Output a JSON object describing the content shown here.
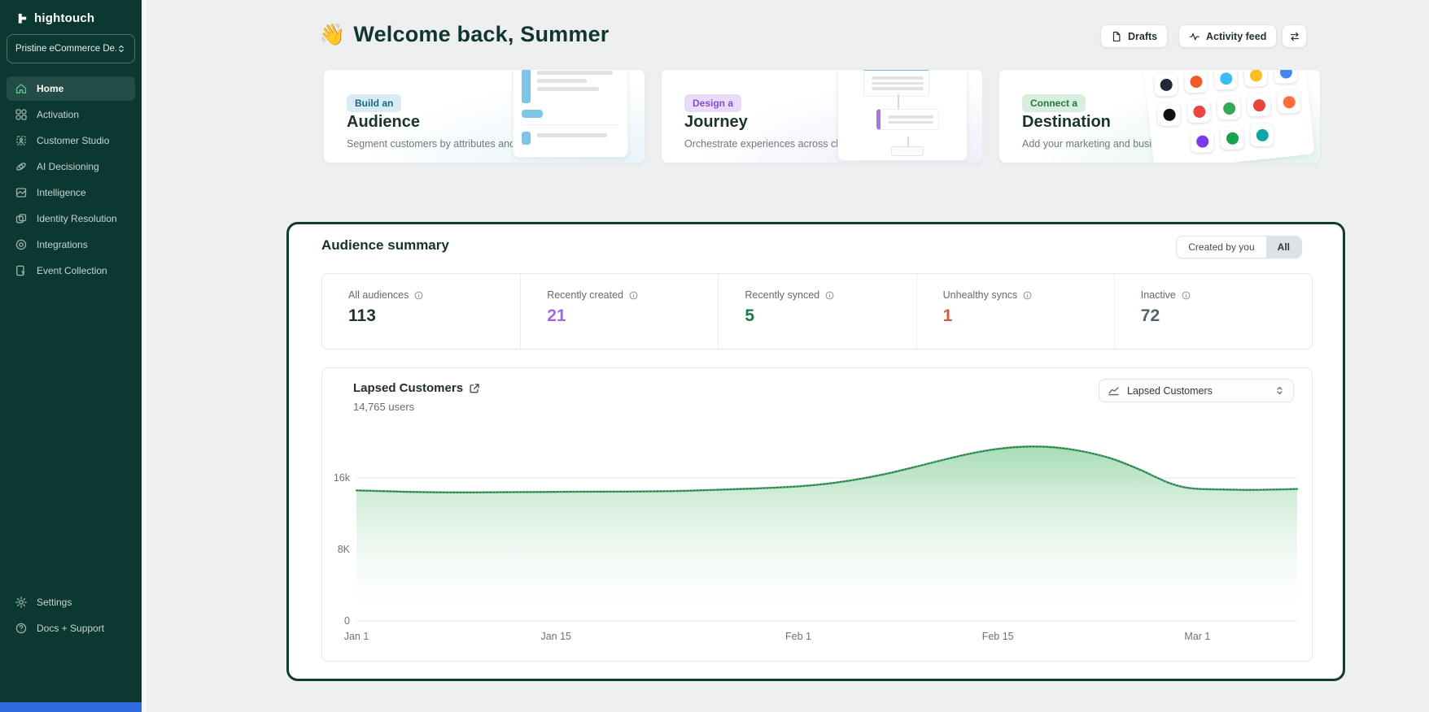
{
  "sidebar": {
    "logo_text": "hightouch",
    "workspace": "Pristine eCommerce De...",
    "nav": [
      {
        "label": "Home",
        "icon": "home-icon",
        "active": true
      },
      {
        "label": "Activation",
        "icon": "activation-icon",
        "active": false
      },
      {
        "label": "Customer Studio",
        "icon": "customer-studio-icon",
        "active": false
      },
      {
        "label": "AI Decisioning",
        "icon": "ai-decisioning-icon",
        "active": false
      },
      {
        "label": "Intelligence",
        "icon": "intelligence-icon",
        "active": false
      },
      {
        "label": "Identity Resolution",
        "icon": "identity-resolution-icon",
        "active": false
      },
      {
        "label": "Integrations",
        "icon": "integrations-icon",
        "active": false
      },
      {
        "label": "Event Collection",
        "icon": "event-collection-icon",
        "active": false
      }
    ],
    "footer": [
      {
        "label": "Settings",
        "icon": "settings-icon"
      },
      {
        "label": "Docs + Support",
        "icon": "help-icon"
      }
    ]
  },
  "header": {
    "emoji": "👋",
    "title": "Welcome back, Summer",
    "drafts_label": "Drafts",
    "activity_feed_label": "Activity feed"
  },
  "quick_cards": [
    {
      "badge": "Build an",
      "title": "Audience",
      "description": "Segment customers by attributes and behavior",
      "badge_bg": "#d9ecf6",
      "badge_color": "#186a77"
    },
    {
      "badge": "Design a",
      "title": "Journey",
      "description": "Orchestrate experiences across channels",
      "badge_bg": "#e9dcf8",
      "badge_color": "#8a4bd0"
    },
    {
      "badge": "Connect a",
      "title": "Destination",
      "description": "Add your marketing and business tools",
      "badge_bg": "#d8efdd",
      "badge_color": "#1e7a45"
    }
  ],
  "destination_tile_colors": [
    "#1f2937",
    "#f25c26",
    "#38bdf8",
    "#fbbf24",
    "#4285f4",
    "#111111",
    "#ef4444",
    "#34a853",
    "#e8453c",
    "#ff6d3b",
    "#7c3aed",
    "#16a34a",
    "#0ea5a5"
  ],
  "summary": {
    "title": "Audience summary",
    "filter_options": [
      {
        "label": "Created by you",
        "selected": false
      },
      {
        "label": "All",
        "selected": true
      }
    ],
    "stats": [
      {
        "label": "All audiences",
        "value": "113",
        "color": "#1c3530"
      },
      {
        "label": "Recently created",
        "value": "21",
        "color": "#a26bdb"
      },
      {
        "label": "Recently synced",
        "value": "5",
        "color": "#1a7a45"
      },
      {
        "label": "Unhealthy syncs",
        "value": "1",
        "color": "#d4584a"
      },
      {
        "label": "Inactive",
        "value": "72",
        "color": "#55606c"
      }
    ]
  },
  "chart_card": {
    "title": "Lapsed Customers",
    "subtitle": "14,765 users",
    "selector_value": "Lapsed Customers"
  },
  "chart_data": {
    "type": "area",
    "title": "Lapsed Customers",
    "current_value_label": "14,765 users",
    "x_ticks": [
      {
        "day": 0,
        "label": "Jan 1"
      },
      {
        "day": 14,
        "label": "Jan 15"
      },
      {
        "day": 31,
        "label": "Feb 1"
      },
      {
        "day": 45,
        "label": "Feb 15"
      },
      {
        "day": 59,
        "label": "Mar 1"
      }
    ],
    "y_ticks": [
      {
        "value": 0,
        "label": "0",
        "grid": true
      },
      {
        "value": 8000,
        "label": "8K",
        "grid": false
      },
      {
        "value": 16000,
        "label": "16k",
        "grid": true
      }
    ],
    "ylim": [
      0,
      23000
    ],
    "x_domain_days": [
      0,
      66
    ],
    "series": [
      {
        "name": "Lapsed Customers",
        "points": [
          [
            0,
            14600
          ],
          [
            2,
            14520
          ],
          [
            4,
            14430
          ],
          [
            7,
            14380
          ],
          [
            10,
            14400
          ],
          [
            13,
            14430
          ],
          [
            16,
            14460
          ],
          [
            19,
            14470
          ],
          [
            22,
            14520
          ],
          [
            25,
            14650
          ],
          [
            28,
            14820
          ],
          [
            31,
            15050
          ],
          [
            33,
            15350
          ],
          [
            35,
            15800
          ],
          [
            37,
            16400
          ],
          [
            39,
            17150
          ],
          [
            41,
            17950
          ],
          [
            43,
            18700
          ],
          [
            45,
            19250
          ],
          [
            47,
            19500
          ],
          [
            49,
            19420
          ],
          [
            51,
            18950
          ],
          [
            53,
            18150
          ],
          [
            55,
            16900
          ],
          [
            56,
            16150
          ],
          [
            57,
            15450
          ],
          [
            58,
            14980
          ],
          [
            59,
            14780
          ],
          [
            61,
            14700
          ],
          [
            63,
            14660
          ],
          [
            66,
            14765
          ]
        ]
      }
    ],
    "line_color": "#45a367",
    "line_dot_color": "#1d5136",
    "fill_top_color": "#9ed8ae",
    "grid_color": "#e6e8ea",
    "legend_position": "none"
  }
}
